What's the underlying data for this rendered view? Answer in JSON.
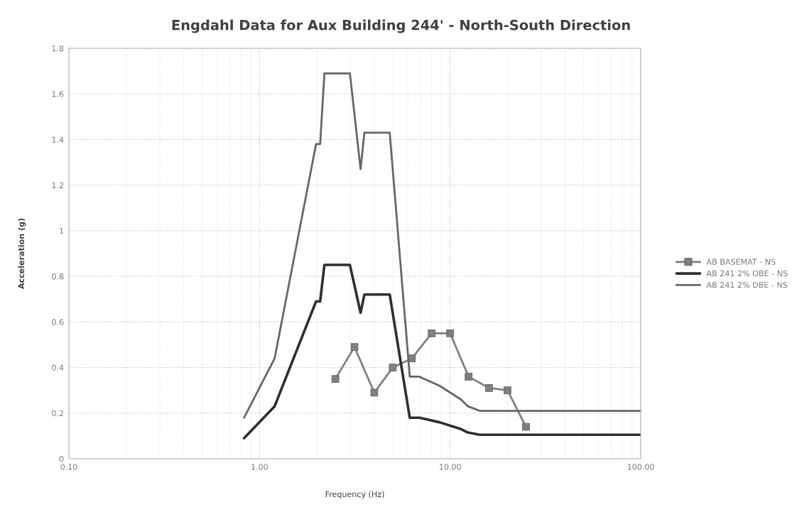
{
  "chart_data": {
    "type": "line",
    "title": "Engdahl Data for Aux Building 244' - North-South Direction",
    "xlabel": "Frequency (Hz)",
    "ylabel": "Acceleration (g)",
    "log": "x",
    "xlim": [
      0.1,
      100
    ],
    "ylim": [
      0,
      1.8
    ],
    "xticks": [
      {
        "value": 0.1,
        "label": "0.10"
      },
      {
        "value": 0.2,
        "label": null
      },
      {
        "value": 0.3,
        "label": null
      },
      {
        "value": 0.4,
        "label": null
      },
      {
        "value": 0.5,
        "label": null
      },
      {
        "value": 0.6,
        "label": null
      },
      {
        "value": 0.7,
        "label": null
      },
      {
        "value": 0.8,
        "label": null
      },
      {
        "value": 0.9,
        "label": null
      },
      {
        "value": 1,
        "label": "1.00"
      },
      {
        "value": 2,
        "label": null
      },
      {
        "value": 3,
        "label": null
      },
      {
        "value": 4,
        "label": null
      },
      {
        "value": 5,
        "label": null
      },
      {
        "value": 6,
        "label": null
      },
      {
        "value": 7,
        "label": null
      },
      {
        "value": 8,
        "label": null
      },
      {
        "value": 9,
        "label": null
      },
      {
        "value": 10,
        "label": "10.00"
      },
      {
        "value": 20,
        "label": null
      },
      {
        "value": 30,
        "label": null
      },
      {
        "value": 40,
        "label": null
      },
      {
        "value": 50,
        "label": null
      },
      {
        "value": 60,
        "label": null
      },
      {
        "value": 70,
        "label": null
      },
      {
        "value": 80,
        "label": null
      },
      {
        "value": 90,
        "label": null
      },
      {
        "value": 100,
        "label": "100.00"
      }
    ],
    "yticks": [
      0,
      0.2,
      0.4,
      0.6,
      0.8,
      1,
      1.2,
      1.4,
      1.6,
      1.8
    ],
    "grid": true,
    "legend": "right",
    "series": [
      {
        "name": "AB BASEMAT - NS",
        "color": "#808080",
        "marker": "square",
        "x": [
          2.5,
          3.15,
          4,
          5,
          6.3,
          8,
          10,
          12.5,
          16,
          20,
          25
        ],
        "values": [
          0.35,
          0.49,
          0.29,
          0.4,
          0.44,
          0.55,
          0.55,
          0.36,
          0.31,
          0.3,
          0.14
        ]
      },
      {
        "name": "AB 241 2% OBE - NS",
        "color": "#2e2e2e",
        "x": [
          0.83,
          1.2,
          1.98,
          2.08,
          2.19,
          2.98,
          3.39,
          3.55,
          4.82,
          6.14,
          6.9,
          8.8,
          11.4,
          12.4,
          14.3,
          100
        ],
        "values": [
          0.09,
          0.23,
          0.69,
          0.69,
          0.85,
          0.85,
          0.64,
          0.72,
          0.72,
          0.18,
          0.18,
          0.16,
          0.13,
          0.115,
          0.105,
          0.105
        ]
      },
      {
        "name": "AB 241 2% DBE - NS",
        "color": "#666666",
        "x": [
          0.83,
          1.2,
          1.98,
          2.08,
          2.19,
          2.98,
          3.39,
          3.55,
          4.82,
          6.14,
          6.9,
          8.8,
          11.4,
          12.4,
          14.3,
          100
        ],
        "values": [
          0.18,
          0.44,
          1.38,
          1.38,
          1.69,
          1.69,
          1.27,
          1.43,
          1.43,
          0.36,
          0.36,
          0.32,
          0.26,
          0.23,
          0.21,
          0.21
        ]
      }
    ]
  }
}
